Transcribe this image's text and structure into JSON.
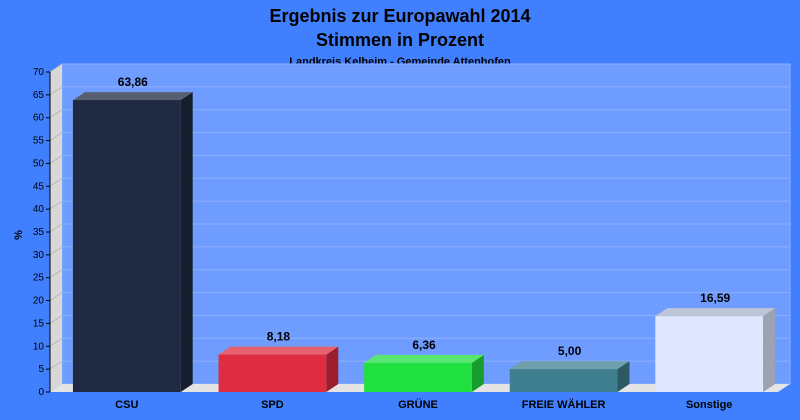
{
  "chart_data": {
    "type": "bar",
    "title": "Ergebnis zur Europawahl 2014",
    "subtitle": "Stimmen in Prozent",
    "subsubtitle": "Landkreis Kelheim - Gemeinde Attenhofen",
    "ylabel": "%",
    "xlabel": "",
    "ylim": [
      0,
      70
    ],
    "yticks": [
      0,
      5,
      10,
      15,
      20,
      25,
      30,
      35,
      40,
      45,
      50,
      55,
      60,
      65,
      70
    ],
    "grid": true,
    "categories": [
      "CSU",
      "SPD",
      "GRÜNE",
      "FREIE WÄHLER",
      "Sonstige"
    ],
    "values": [
      63.86,
      8.18,
      6.36,
      5.0,
      16.59
    ],
    "value_labels": [
      "63,86",
      "8,18",
      "6,36",
      "5,00",
      "16,59"
    ],
    "colors": [
      "#1f2940",
      "#e02c40",
      "#20e040",
      "#3f7f8f",
      "#e0e8ff"
    ],
    "background": "#4080ff",
    "plot_background": "#6f9cff"
  }
}
